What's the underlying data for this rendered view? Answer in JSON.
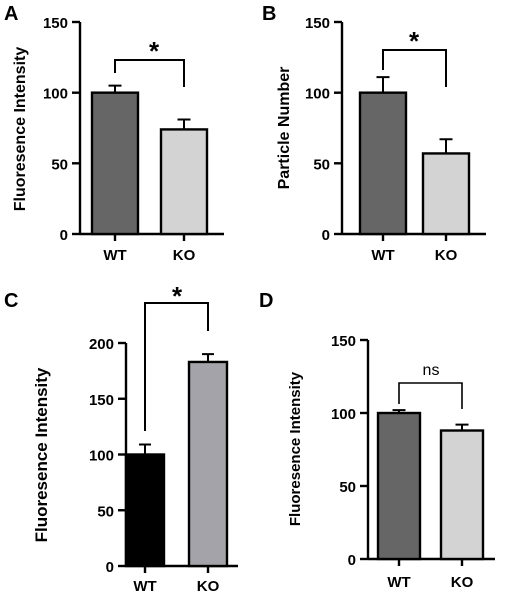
{
  "panels": [
    {
      "letter": "A",
      "ylabel": "Fluoresence Intensity",
      "ticks": [
        "0",
        "50",
        "100",
        "150"
      ],
      "significance": "*"
    },
    {
      "letter": "B",
      "ylabel": "Particle Number",
      "ticks": [
        "0",
        "50",
        "100",
        "150"
      ],
      "significance": "*"
    },
    {
      "letter": "C",
      "ylabel": "Fluoresence Intensity",
      "ticks": [
        "0",
        "50",
        "100",
        "150",
        "200"
      ],
      "significance": "*"
    },
    {
      "letter": "D",
      "ylabel": "Fluoresence Intensity",
      "ticks": [
        "0",
        "50",
        "100",
        "150"
      ],
      "significance": "ns"
    }
  ],
  "chart_data": [
    {
      "panel": "A",
      "type": "bar",
      "categories": [
        "WT",
        "KO"
      ],
      "values": [
        100,
        74
      ],
      "errors": [
        5,
        7
      ],
      "bar_colors": [
        "#666666",
        "#d3d3d3"
      ],
      "xlabel": "",
      "ylabel": "Fluoresence Intensity",
      "ylim": [
        0,
        150
      ],
      "yticks": [
        0,
        50,
        100,
        150
      ],
      "significance": "*",
      "grid": false,
      "legend": "none"
    },
    {
      "panel": "B",
      "type": "bar",
      "categories": [
        "WT",
        "KO"
      ],
      "values": [
        100,
        57
      ],
      "errors": [
        11,
        10
      ],
      "bar_colors": [
        "#666666",
        "#d3d3d3"
      ],
      "xlabel": "",
      "ylabel": "Particle Number",
      "ylim": [
        0,
        150
      ],
      "yticks": [
        0,
        50,
        100,
        150
      ],
      "significance": "*",
      "grid": false,
      "legend": "none"
    },
    {
      "panel": "C",
      "type": "bar",
      "categories": [
        "WT",
        "KO"
      ],
      "values": [
        100,
        183
      ],
      "errors": [
        9,
        7
      ],
      "bar_colors": [
        "#000000",
        "#a3a3a9"
      ],
      "xlabel": "",
      "ylabel": "Fluoresence Intensity",
      "ylim": [
        0,
        200
      ],
      "yticks": [
        0,
        50,
        100,
        150,
        200
      ],
      "significance": "*",
      "grid": false,
      "legend": "none"
    },
    {
      "panel": "D",
      "type": "bar",
      "categories": [
        "WT",
        "KO"
      ],
      "values": [
        100,
        88
      ],
      "errors": [
        2,
        4
      ],
      "bar_colors": [
        "#666666",
        "#d3d3d3"
      ],
      "xlabel": "",
      "ylabel": "Fluoresence Intensity",
      "ylim": [
        0,
        150
      ],
      "yticks": [
        0,
        50,
        100,
        150
      ],
      "significance": "ns",
      "grid": false,
      "legend": "none"
    }
  ]
}
